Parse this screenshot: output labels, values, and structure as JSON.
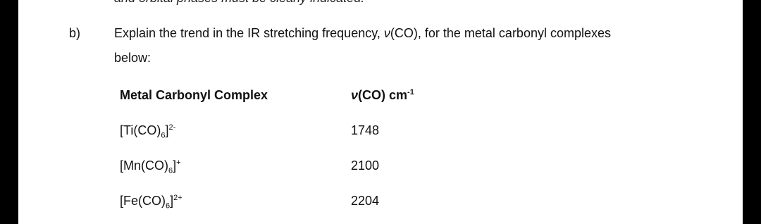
{
  "header": {
    "cut_text": "and orbital phases must be clearly indicated."
  },
  "question": {
    "label": "b)",
    "text_line1": "Explain the trend in the IR stretching frequency, ",
    "symbol": "ν",
    "text_line1_end": "(CO), for the metal carbonyl complexes",
    "text_line2": "below:"
  },
  "table": {
    "columns": [
      {
        "label": "Metal Carbonyl Complex"
      },
      {
        "symbol": "ν",
        "label": "(CO) cm",
        "sup": "-1"
      }
    ],
    "rows": [
      {
        "complex": {
          "open": "[Ti(CO)",
          "sub": "6",
          "close": "]",
          "charge": "2-"
        },
        "value": 1748
      },
      {
        "complex": {
          "open": "[Mn(CO)",
          "sub": "6",
          "close": "]",
          "charge": "+"
        },
        "value": 2100
      },
      {
        "complex": {
          "open": "[Fe(CO)",
          "sub": "6",
          "close": "]",
          "charge": "2+"
        },
        "value": 2204
      }
    ]
  }
}
